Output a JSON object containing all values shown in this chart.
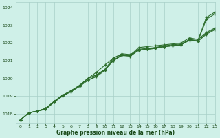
{
  "background_color": "#cff0e8",
  "grid_color": "#a8cfc8",
  "line_color": "#2d6e2d",
  "text_color": "#1a4a1a",
  "xlabel": "Graphe pression niveau de la mer (hPa)",
  "xlim": [
    -0.5,
    23
  ],
  "ylim": [
    1017.5,
    1024.3
  ],
  "yticks": [
    1018,
    1019,
    1020,
    1021,
    1022,
    1023,
    1024
  ],
  "xticks": [
    0,
    1,
    2,
    3,
    4,
    5,
    6,
    7,
    8,
    9,
    10,
    11,
    12,
    13,
    14,
    15,
    16,
    17,
    18,
    19,
    20,
    21,
    22,
    23
  ],
  "series": [
    [
      1017.65,
      1018.05,
      1018.15,
      1018.3,
      1018.65,
      1019.05,
      1019.25,
      1019.55,
      1019.9,
      1020.1,
      1020.45,
      1021.05,
      1021.3,
      1021.3,
      1021.6,
      1021.65,
      1021.7,
      1021.8,
      1021.85,
      1021.9,
      1022.15,
      1022.1,
      1023.35,
      1023.65
    ],
    [
      1017.65,
      1018.05,
      1018.15,
      1018.25,
      1018.65,
      1019.0,
      1019.25,
      1019.55,
      1019.9,
      1020.15,
      1020.5,
      1021.15,
      1021.4,
      1021.35,
      1021.65,
      1021.7,
      1021.75,
      1021.85,
      1021.9,
      1021.95,
      1022.2,
      1022.15,
      1023.45,
      1023.75
    ],
    [
      1017.65,
      1018.05,
      1018.15,
      1018.25,
      1018.7,
      1019.0,
      1019.3,
      1019.6,
      1020.0,
      1020.2,
      1020.5,
      1021.0,
      1021.35,
      1021.3,
      1021.6,
      1021.65,
      1021.7,
      1021.8,
      1021.85,
      1021.9,
      1022.2,
      1022.1,
      1022.55,
      1022.8
    ],
    [
      1017.65,
      1018.05,
      1018.15,
      1018.3,
      1018.7,
      1019.05,
      1019.3,
      1019.6,
      1020.0,
      1020.2,
      1020.5,
      1021.0,
      1021.3,
      1021.25,
      1021.6,
      1021.65,
      1021.75,
      1021.8,
      1021.85,
      1021.9,
      1022.2,
      1022.1,
      1022.5,
      1022.75
    ],
    [
      1017.65,
      1018.05,
      1018.15,
      1018.3,
      1018.7,
      1019.05,
      1019.3,
      1019.6,
      1020.0,
      1020.35,
      1020.75,
      1021.15,
      1021.35,
      1021.3,
      1021.75,
      1021.8,
      1021.85,
      1021.9,
      1021.95,
      1022.0,
      1022.3,
      1022.2,
      1022.6,
      1022.85
    ]
  ]
}
